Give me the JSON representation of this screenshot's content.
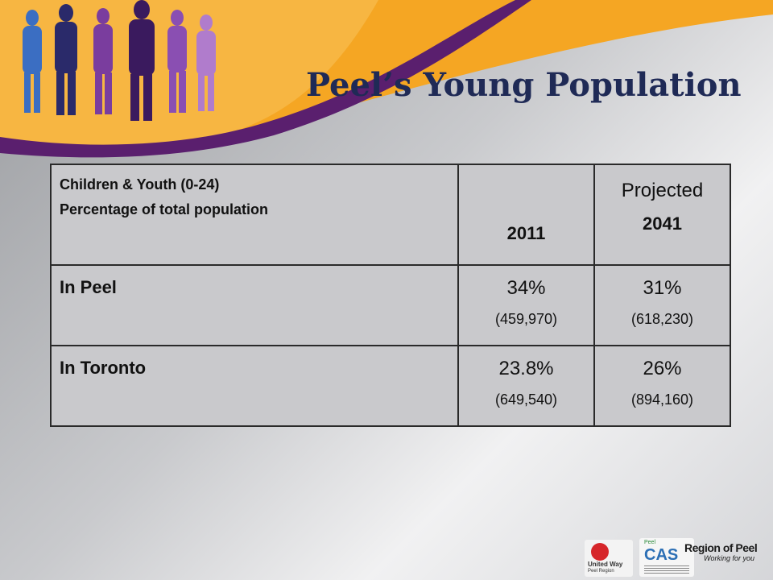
{
  "slide": {
    "title": "Peel’s Young Population"
  },
  "table": {
    "header": {
      "label_line1": "Children & Youth (0-24)",
      "label_line2": "Percentage of  total population",
      "col2011": "2011",
      "projected": "Projected",
      "col2041": "2041"
    },
    "rows": [
      {
        "label": "In Peel",
        "pct2011": "34%",
        "count2011": "(459,970)",
        "pct2041": "31%",
        "count2041": "(618,230)"
      },
      {
        "label": "In Toronto",
        "pct2011": "23.8%",
        "count2011": "(649,540)",
        "pct2041": "26%",
        "count2041": "(894,160)"
      }
    ]
  },
  "logos": {
    "united_way_line1": "United Way",
    "united_way_line2": "Peel Region",
    "cas_top": "Peel",
    "cas_name": "CAS",
    "region_name": "Region of Peel",
    "region_tagline": "Working for you"
  },
  "colors": {
    "title": "#1f2a56",
    "banner_orange": "#f5a623",
    "banner_purple": "#5a1f6e"
  }
}
